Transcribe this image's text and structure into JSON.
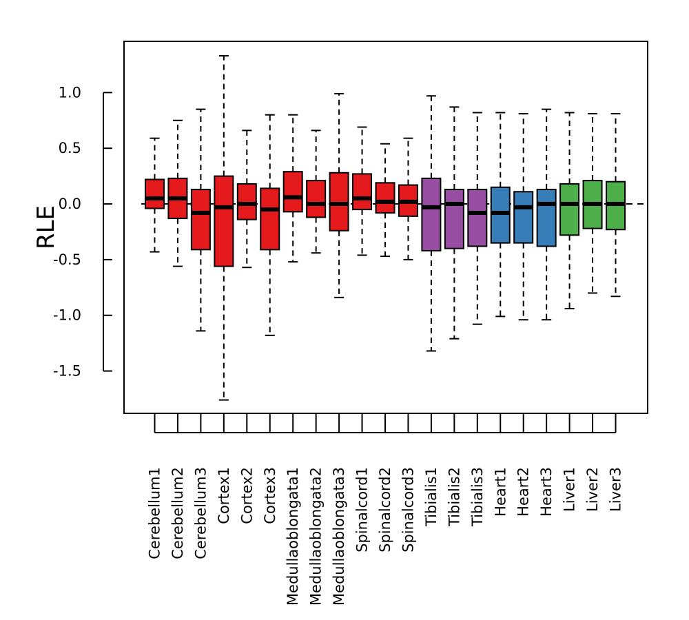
{
  "chart_data": {
    "type": "boxplot",
    "ylabel": "RLE",
    "ylim": [
      -1.88,
      1.46
    ],
    "yticks": [
      -1.5,
      -1.0,
      -0.5,
      0.0,
      0.5,
      1.0
    ],
    "ytick_labels": [
      "-1.5",
      "-1.0",
      "-0.5",
      "0.0",
      "0.5",
      "1.0"
    ],
    "reference_line": 0.0,
    "colors": {
      "brain": "#e41a1c",
      "tibialis": "#984ea3",
      "heart": "#377eb8",
      "liver": "#4daf4a"
    },
    "categories": [
      "Cerebellum1",
      "Cerebellum2",
      "Cerebellum3",
      "Cortex1",
      "Cortex2",
      "Cortex3",
      "Medullaoblongata1",
      "Medullaoblongata2",
      "Medullaoblongata3",
      "Spinalcord1",
      "Spinalcord2",
      "Spinalcord3",
      "Tibialis1",
      "Tibialis2",
      "Tibialis3",
      "Heart1",
      "Heart2",
      "Heart3",
      "Liver1",
      "Liver2",
      "Liver3"
    ],
    "boxes": [
      {
        "label": "Cerebellum1",
        "group": "brain",
        "min": -0.43,
        "q1": -0.04,
        "median": 0.05,
        "q3": 0.22,
        "max": 0.59
      },
      {
        "label": "Cerebellum2",
        "group": "brain",
        "min": -0.56,
        "q1": -0.13,
        "median": 0.05,
        "q3": 0.23,
        "max": 0.75
      },
      {
        "label": "Cerebellum3",
        "group": "brain",
        "min": -1.14,
        "q1": -0.41,
        "median": -0.08,
        "q3": 0.13,
        "max": 0.85
      },
      {
        "label": "Cortex1",
        "group": "brain",
        "min": -1.76,
        "q1": -0.56,
        "median": -0.03,
        "q3": 0.25,
        "max": 1.33
      },
      {
        "label": "Cortex2",
        "group": "brain",
        "min": -0.57,
        "q1": -0.14,
        "median": 0.0,
        "q3": 0.18,
        "max": 0.66
      },
      {
        "label": "Cortex3",
        "group": "brain",
        "min": -1.18,
        "q1": -0.41,
        "median": -0.05,
        "q3": 0.14,
        "max": 0.8
      },
      {
        "label": "Medullaoblongata1",
        "group": "brain",
        "min": -0.52,
        "q1": -0.07,
        "median": 0.06,
        "q3": 0.29,
        "max": 0.8
      },
      {
        "label": "Medullaoblongata2",
        "group": "brain",
        "min": -0.44,
        "q1": -0.12,
        "median": 0.0,
        "q3": 0.21,
        "max": 0.66
      },
      {
        "label": "Medullaoblongata3",
        "group": "brain",
        "min": -0.84,
        "q1": -0.24,
        "median": 0.0,
        "q3": 0.28,
        "max": 0.99
      },
      {
        "label": "Spinalcord1",
        "group": "brain",
        "min": -0.46,
        "q1": -0.05,
        "median": 0.05,
        "q3": 0.27,
        "max": 0.69
      },
      {
        "label": "Spinalcord2",
        "group": "brain",
        "min": -0.47,
        "q1": -0.08,
        "median": 0.02,
        "q3": 0.19,
        "max": 0.54
      },
      {
        "label": "Spinalcord3",
        "group": "brain",
        "min": -0.5,
        "q1": -0.11,
        "median": 0.02,
        "q3": 0.17,
        "max": 0.59
      },
      {
        "label": "Tibialis1",
        "group": "tibialis",
        "min": -1.32,
        "q1": -0.42,
        "median": -0.03,
        "q3": 0.23,
        "max": 0.97
      },
      {
        "label": "Tibialis2",
        "group": "tibialis",
        "min": -1.21,
        "q1": -0.4,
        "median": 0.0,
        "q3": 0.13,
        "max": 0.87
      },
      {
        "label": "Tibialis3",
        "group": "tibialis",
        "min": -1.08,
        "q1": -0.38,
        "median": -0.08,
        "q3": 0.13,
        "max": 0.82
      },
      {
        "label": "Heart1",
        "group": "heart",
        "min": -1.01,
        "q1": -0.35,
        "median": -0.08,
        "q3": 0.15,
        "max": 0.82
      },
      {
        "label": "Heart2",
        "group": "heart",
        "min": -1.04,
        "q1": -0.35,
        "median": -0.03,
        "q3": 0.11,
        "max": 0.81
      },
      {
        "label": "Heart3",
        "group": "heart",
        "min": -1.04,
        "q1": -0.38,
        "median": 0.0,
        "q3": 0.13,
        "max": 0.85
      },
      {
        "label": "Liver1",
        "group": "liver",
        "min": -0.94,
        "q1": -0.28,
        "median": 0.0,
        "q3": 0.18,
        "max": 0.82
      },
      {
        "label": "Liver2",
        "group": "liver",
        "min": -0.8,
        "q1": -0.22,
        "median": 0.0,
        "q3": 0.21,
        "max": 0.81
      },
      {
        "label": "Liver3",
        "group": "liver",
        "min": -0.83,
        "q1": -0.23,
        "median": 0.0,
        "q3": 0.2,
        "max": 0.81
      }
    ]
  }
}
